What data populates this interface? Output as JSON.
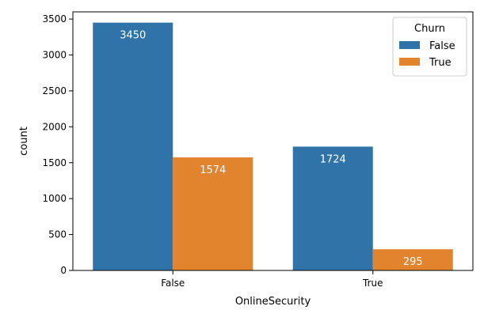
{
  "chart_data": {
    "type": "bar",
    "categories": [
      "False",
      "True"
    ],
    "series": [
      {
        "name": "False",
        "values": [
          3450,
          1724
        ],
        "color": "#2f73a8"
      },
      {
        "name": "True",
        "values": [
          1574,
          295
        ],
        "color": "#e2832e"
      }
    ],
    "xlabel": "OnlineSecurity",
    "ylabel": "count",
    "ylim": [
      0,
      3600
    ],
    "yticks": [
      0,
      500,
      1000,
      1500,
      2000,
      2500,
      3000,
      3500
    ],
    "grid": false,
    "legend": {
      "title": "Churn",
      "placement": "top-right"
    },
    "bar_labels": [
      "3450",
      "1574",
      "1724",
      "295"
    ]
  }
}
